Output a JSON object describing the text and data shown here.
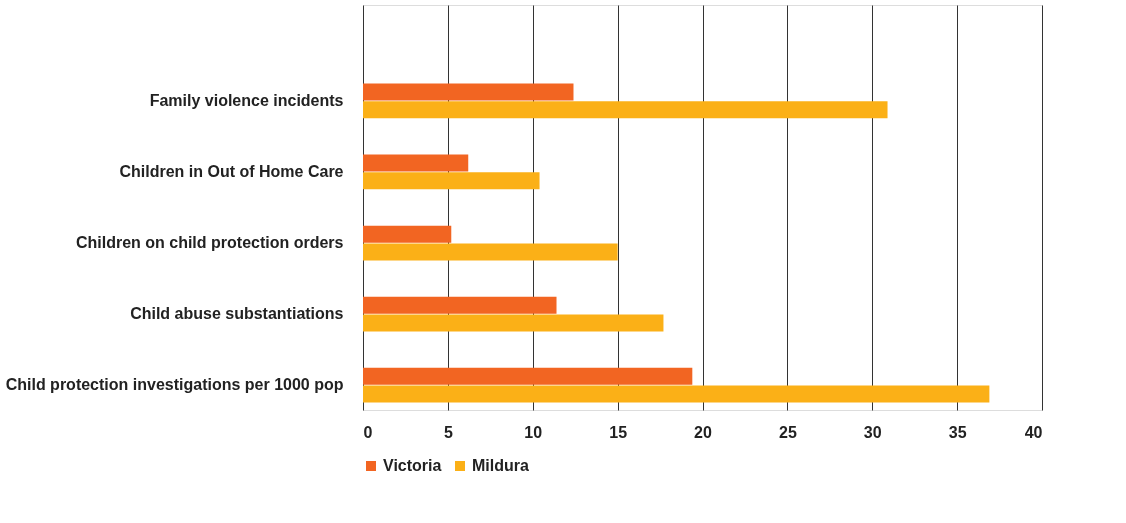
{
  "chart_data": {
    "type": "bar",
    "orientation": "horizontal",
    "categories": [
      null,
      "Family violence incidents",
      "Children in Out of Home Care",
      "Children on child protection orders",
      "Child abuse substantiations",
      "Child protection investigations per 1000 pop"
    ],
    "series": [
      {
        "name": "Victoria",
        "color": "#f26522",
        "values": [
          null,
          12.4,
          6.2,
          5.2,
          11.4,
          19.4
        ]
      },
      {
        "name": "Mildura",
        "color": "#fbb017",
        "values": [
          null,
          30.9,
          10.4,
          15.0,
          17.7,
          36.9
        ]
      }
    ],
    "xlim": [
      0,
      40
    ],
    "xticks": [
      0,
      5,
      10,
      15,
      20,
      25,
      30,
      35,
      40
    ],
    "grid": "x",
    "legend": "bottom"
  }
}
